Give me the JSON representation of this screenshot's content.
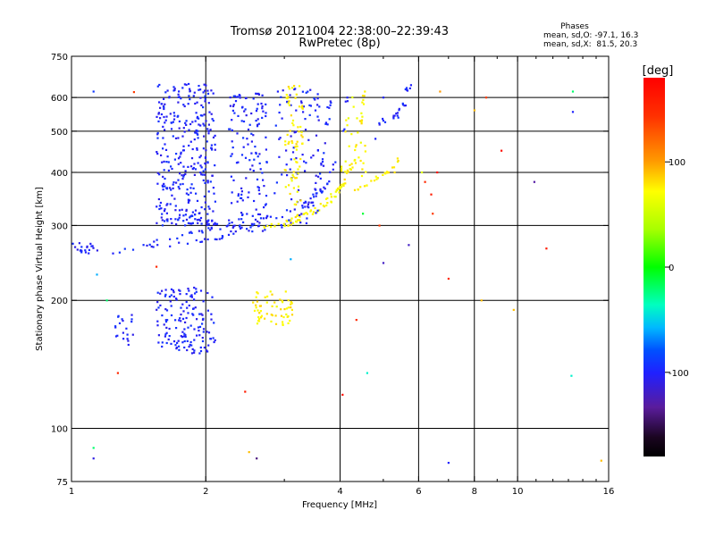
{
  "chart_data": {
    "type": "scatter",
    "title": "Tromsø 20121004 22:38:00–22:39:43",
    "subtitle": "RwPretec (8p)",
    "stats": {
      "heading": "Phases",
      "line1": "mean, sd,O: -97.1, 16.3",
      "line2": "mean, sd,X:  81.5, 20.3"
    },
    "xlabel": "Frequency [MHz]",
    "ylabel": "Stationary phase Virtual Height [km]",
    "x_scale": "log",
    "y_scale": "log",
    "xlim": [
      1,
      16
    ],
    "ylim": [
      75,
      750
    ],
    "x_ticks": [
      {
        "value": 1,
        "label": "1"
      },
      {
        "value": 2,
        "label": "2"
      },
      {
        "value": 4,
        "label": "4"
      },
      {
        "value": 6,
        "label": "6"
      },
      {
        "value": 8,
        "label": "8"
      },
      {
        "value": 10,
        "label": "10"
      },
      {
        "value": 16,
        "label": "16"
      }
    ],
    "x_minor_ticks": [
      3,
      5,
      7,
      9,
      11,
      12,
      13,
      14,
      15
    ],
    "y_ticks": [
      {
        "value": 75,
        "label": "75"
      },
      {
        "value": 100,
        "label": "100"
      },
      {
        "value": 200,
        "label": "200"
      },
      {
        "value": 300,
        "label": "300"
      },
      {
        "value": 400,
        "label": "400"
      },
      {
        "value": 500,
        "label": "500"
      },
      {
        "value": 600,
        "label": "600"
      },
      {
        "value": 750,
        "label": "750"
      }
    ],
    "grid_x": [
      2,
      4,
      6,
      8,
      10
    ],
    "grid_y": [
      100,
      200,
      300,
      400,
      500,
      600
    ],
    "colorbar": {
      "label": "[deg]",
      "range": [
        -180,
        180
      ],
      "ticks": [
        {
          "value": 100,
          "label": "100"
        },
        {
          "value": 0,
          "label": "0"
        },
        {
          "value": -100,
          "label": "-100"
        }
      ]
    },
    "traces": [
      {
        "type": "curve",
        "phase": -100,
        "n": 60,
        "jitter": 0.012,
        "points": [
          [
            1.2,
            260
          ],
          [
            1.5,
            272
          ],
          [
            1.8,
            285
          ],
          [
            2.1,
            295
          ],
          [
            2.5,
            305
          ],
          [
            3.0,
            318
          ],
          [
            3.4,
            340
          ],
          [
            3.7,
            370
          ],
          [
            3.9,
            420
          ],
          [
            4.05,
            500
          ],
          [
            4.2,
            620
          ]
        ]
      },
      {
        "type": "curve",
        "phase": -100,
        "n": 60,
        "jitter": 0.012,
        "points": [
          [
            1.2,
            258
          ],
          [
            1.5,
            265
          ],
          [
            1.9,
            275
          ],
          [
            2.2,
            283
          ],
          [
            2.6,
            292
          ],
          [
            3.0,
            302
          ],
          [
            3.3,
            320
          ],
          [
            3.5,
            350
          ],
          [
            3.65,
            420
          ],
          [
            3.75,
            520
          ],
          [
            3.8,
            600
          ]
        ]
      },
      {
        "type": "curve",
        "phase": -100,
        "n": 30,
        "jitter": 0.015,
        "points": [
          [
            1.6,
            310
          ],
          [
            1.8,
            315
          ],
          [
            2.0,
            305
          ],
          [
            2.3,
            300
          ],
          [
            2.6,
            295
          ]
        ]
      },
      {
        "type": "curve",
        "phase": 105,
        "n": 55,
        "jitter": 0.008,
        "points": [
          [
            2.7,
            298
          ],
          [
            3.0,
            305
          ],
          [
            3.3,
            318
          ],
          [
            3.6,
            335
          ],
          [
            3.9,
            360
          ],
          [
            4.1,
            385
          ],
          [
            4.3,
            430
          ],
          [
            4.45,
            520
          ],
          [
            4.55,
            640
          ]
        ]
      },
      {
        "type": "curve",
        "phase": 100,
        "n": 30,
        "jitter": 0.008,
        "points": [
          [
            3.0,
            300
          ],
          [
            3.3,
            310
          ],
          [
            3.6,
            325
          ],
          [
            3.9,
            350
          ],
          [
            4.1,
            380
          ]
        ]
      },
      {
        "type": "curve",
        "phase": 105,
        "n": 25,
        "jitter": 0.01,
        "points": [
          [
            4.3,
            360
          ],
          [
            4.6,
            375
          ],
          [
            4.9,
            390
          ],
          [
            5.2,
            405
          ],
          [
            5.5,
            440
          ]
        ]
      },
      {
        "type": "curve",
        "phase": -100,
        "n": 25,
        "jitter": 0.015,
        "points": [
          [
            4.8,
            520
          ],
          [
            5.3,
            540
          ],
          [
            5.6,
            580
          ],
          [
            5.7,
            640
          ]
        ]
      },
      {
        "type": "cluster",
        "phase": -100,
        "n": 320,
        "x": [
          1.55,
          2.1
        ],
        "y": [
          300,
          650
        ]
      },
      {
        "type": "cluster",
        "phase": -100,
        "n": 140,
        "x": [
          2.25,
          2.75
        ],
        "y": [
          290,
          620
        ]
      },
      {
        "type": "cluster",
        "phase": -100,
        "n": 80,
        "x": [
          2.85,
          3.6
        ],
        "y": [
          300,
          640
        ]
      },
      {
        "type": "cluster",
        "phase": -100,
        "n": 150,
        "x": [
          1.55,
          2.1
        ],
        "y": [
          150,
          215
        ]
      },
      {
        "type": "cluster",
        "phase": -100,
        "n": 20,
        "x": [
          1.25,
          1.38
        ],
        "y": [
          155,
          185
        ]
      },
      {
        "type": "cluster",
        "phase": 105,
        "n": 60,
        "x": [
          2.55,
          3.15
        ],
        "y": [
          175,
          210
        ]
      },
      {
        "type": "cluster",
        "phase": 105,
        "n": 70,
        "x": [
          3.0,
          3.3
        ],
        "y": [
          330,
          640
        ]
      },
      {
        "type": "cluster",
        "phase": 100,
        "n": 30,
        "x": [
          4.0,
          4.6
        ],
        "y": [
          390,
          620
        ]
      },
      {
        "type": "cluster",
        "phase": -100,
        "n": 20,
        "x": [
          1.0,
          1.15
        ],
        "y": [
          255,
          275
        ]
      }
    ],
    "scatter_points": [
      [
        1.12,
        620,
        -90
      ],
      [
        1.38,
        618,
        140
      ],
      [
        1.14,
        230,
        -60
      ],
      [
        1.2,
        200,
        -20
      ],
      [
        1.12,
        90,
        -20
      ],
      [
        1.12,
        85,
        -110
      ],
      [
        1.27,
        135,
        150
      ],
      [
        1.55,
        240,
        150
      ],
      [
        2.45,
        122,
        160
      ],
      [
        2.5,
        88,
        120
      ],
      [
        2.6,
        85,
        -140
      ],
      [
        4.05,
        120,
        170
      ],
      [
        4.35,
        180,
        150
      ],
      [
        4.6,
        135,
        -40
      ],
      [
        4.8,
        480,
        -100
      ],
      [
        4.9,
        300,
        140
      ],
      [
        5.0,
        245,
        -120
      ],
      [
        5.0,
        600,
        -100
      ],
      [
        5.7,
        270,
        -120
      ],
      [
        6.2,
        380,
        150
      ],
      [
        6.4,
        355,
        160
      ],
      [
        6.45,
        320,
        140
      ],
      [
        6.6,
        400,
        170
      ],
      [
        6.7,
        620,
        130
      ],
      [
        7.0,
        225,
        150
      ],
      [
        7.0,
        83,
        -100
      ],
      [
        8.0,
        560,
        120
      ],
      [
        8.3,
        200,
        120
      ],
      [
        8.5,
        600,
        140
      ],
      [
        9.2,
        450,
        170
      ],
      [
        9.8,
        190,
        120
      ],
      [
        10.9,
        380,
        -130
      ],
      [
        11.6,
        265,
        160
      ],
      [
        13.3,
        620,
        -20
      ],
      [
        13.3,
        555,
        -100
      ],
      [
        13.2,
        133,
        -40
      ],
      [
        15.4,
        84,
        120
      ],
      [
        2.9,
        620,
        -100
      ],
      [
        3.35,
        340,
        -100
      ],
      [
        4.15,
        600,
        -100
      ],
      [
        4.5,
        320,
        -10
      ],
      [
        5.3,
        400,
        110
      ],
      [
        3.1,
        250,
        -60
      ],
      [
        6.1,
        400,
        90
      ]
    ]
  }
}
